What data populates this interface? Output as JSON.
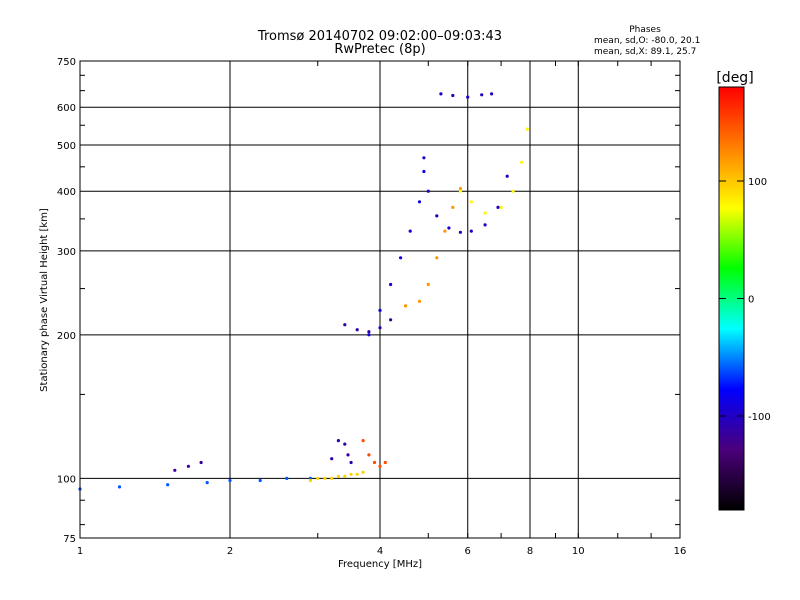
{
  "chart_data": {
    "type": "scatter",
    "title": "Tromsø 20140702 09:02:00–09:03:43",
    "subtitle": "RwPretec (8p)",
    "phase_box": {
      "heading": "Phases",
      "line1": "mean, sd,O: -80.0, 20.1",
      "line2": "mean, sd,X: 89.1, 25.7"
    },
    "xlabel": "Frequency [MHz]",
    "ylabel": "Stationary phase Virtual Height [km]",
    "x_scale": "log",
    "y_scale": "log",
    "xlim": [
      1,
      16
    ],
    "ylim": [
      75,
      750
    ],
    "xticks": [
      1,
      2,
      4,
      6,
      8,
      10,
      16
    ],
    "xtick_labels": [
      "1",
      "2",
      "4",
      "6",
      "8",
      "10",
      "16"
    ],
    "yticks": [
      75,
      100,
      200,
      300,
      400,
      500,
      600,
      750
    ],
    "ytick_labels": [
      "75",
      "100",
      "200",
      "300",
      "400",
      "500",
      "600",
      "750"
    ],
    "grid": true,
    "colorbar": {
      "label": "[deg]",
      "range": [
        -180,
        180
      ],
      "ticks": [
        100,
        0,
        -100
      ],
      "tick_labels": [
        "100",
        "0",
        "-100"
      ],
      "colors": [
        "#000000",
        "#4a007a",
        "#0000ff",
        "#00ffff",
        "#00ff00",
        "#ffff00",
        "#ff8000",
        "#ff0000"
      ]
    },
    "traces": [
      {
        "x": [
          1.0,
          1.2,
          1.5,
          1.8,
          2.0,
          2.3,
          2.6,
          2.9
        ],
        "y": [
          95,
          96,
          97,
          98,
          99,
          99,
          100,
          100
        ],
        "phase": -60
      },
      {
        "x": [
          1.55,
          1.65,
          1.75
        ],
        "y": [
          104,
          106,
          108
        ],
        "phase": -115
      },
      {
        "x": [
          2.9,
          3.0,
          3.1,
          3.2,
          3.3,
          3.4,
          3.5,
          3.6,
          3.7
        ],
        "y": [
          99,
          100,
          100,
          100,
          101,
          101,
          102,
          102,
          103
        ],
        "phase": 95
      },
      {
        "x": [
          3.2,
          3.3,
          3.4,
          3.45,
          3.5
        ],
        "y": [
          110,
          120,
          118,
          112,
          108
        ],
        "phase": -110
      },
      {
        "x": [
          3.7,
          3.8,
          3.9,
          4.0,
          4.1
        ],
        "y": [
          120,
          112,
          108,
          106,
          108
        ],
        "phase": 150
      },
      {
        "x": [
          3.8,
          4.0,
          4.2,
          4.4,
          4.6,
          4.8,
          4.9
        ],
        "y": [
          200,
          225,
          255,
          290,
          330,
          380,
          440
        ],
        "phase": -90
      },
      {
        "x": [
          3.4,
          3.6,
          3.8,
          4.0,
          4.2
        ],
        "y": [
          210,
          205,
          203,
          207,
          215
        ],
        "phase": -110
      },
      {
        "x": [
          4.9,
          5.0,
          5.2,
          5.5,
          5.8,
          6.1,
          6.5,
          6.9,
          7.2
        ],
        "y": [
          470,
          400,
          355,
          335,
          328,
          330,
          340,
          370,
          430
        ],
        "phase": -100
      },
      {
        "x": [
          4.5,
          4.8,
          5.0,
          5.2,
          5.4,
          5.6,
          5.8
        ],
        "y": [
          230,
          235,
          255,
          290,
          330,
          370,
          405
        ],
        "phase": 120
      },
      {
        "x": [
          5.8,
          6.1,
          6.5,
          7.0,
          7.4,
          7.7,
          7.9
        ],
        "y": [
          400,
          380,
          360,
          370,
          400,
          460,
          540
        ],
        "phase": 80
      },
      {
        "x": [
          5.3,
          5.6,
          6.0,
          6.4,
          6.7
        ],
        "y": [
          640,
          635,
          630,
          637,
          640
        ],
        "phase": -100
      }
    ]
  }
}
